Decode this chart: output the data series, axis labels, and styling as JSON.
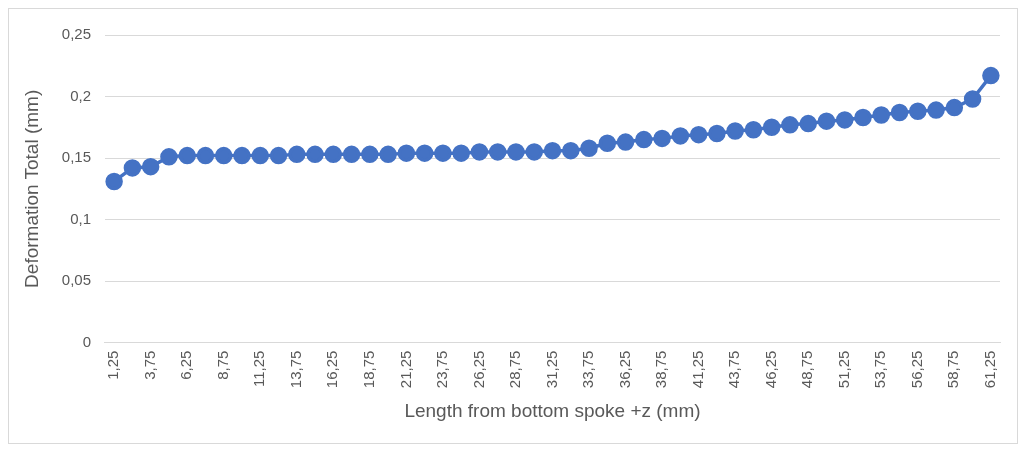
{
  "chart_data": {
    "type": "line",
    "xlabel": "Length from bottom spoke +z (mm)",
    "ylabel": "Deformation Total (mm)",
    "categories": [
      "1,25",
      null,
      "3,75",
      null,
      "6,25",
      null,
      "8,75",
      null,
      "11,25",
      null,
      "13,75",
      null,
      "16,25",
      null,
      "18,75",
      null,
      "21,25",
      null,
      "23,75",
      null,
      "26,25",
      null,
      "28,75",
      null,
      "31,25",
      null,
      "33,75",
      null,
      "36,25",
      null,
      "38,75",
      null,
      "41,25",
      null,
      "43,75",
      null,
      "46,25",
      null,
      "48,75",
      null,
      "51,25",
      null,
      "53,75",
      null,
      "56,25",
      null,
      "58,75",
      null,
      "61,25"
    ],
    "series": [
      {
        "color": "#4472c4",
        "values": [
          0.131,
          0.142,
          0.143,
          0.151,
          0.152,
          0.152,
          0.152,
          0.152,
          0.152,
          0.152,
          0.153,
          0.153,
          0.153,
          0.153,
          0.153,
          0.153,
          0.154,
          0.154,
          0.154,
          0.154,
          0.155,
          0.155,
          0.155,
          0.155,
          0.156,
          0.156,
          0.158,
          0.162,
          0.163,
          0.165,
          0.166,
          0.168,
          0.169,
          0.17,
          0.172,
          0.173,
          0.175,
          0.177,
          0.178,
          0.18,
          0.181,
          0.183,
          0.185,
          0.187,
          0.188,
          0.189,
          0.191,
          0.198,
          0.217
        ]
      }
    ],
    "ylim": [
      0,
      0.25
    ],
    "yticks": [
      {
        "value": 0,
        "label": "0"
      },
      {
        "value": 0.05,
        "label": "0,05"
      },
      {
        "value": 0.1,
        "label": "0,1"
      },
      {
        "value": 0.15,
        "label": "0,15"
      },
      {
        "value": 0.2,
        "label": "0,2"
      },
      {
        "value": 0.25,
        "label": "0,25"
      }
    ],
    "grid": "y",
    "legend": false,
    "marker": "circle",
    "line_style": "solid"
  }
}
